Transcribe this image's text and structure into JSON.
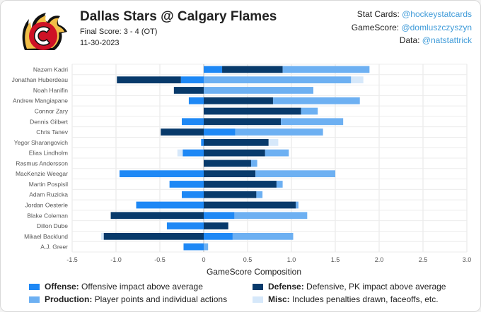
{
  "header": {
    "title": "Dallas Stars @ Calgary Flames",
    "score_line": "Final Score: 3 - 4 (OT)",
    "date": "11-30-2023"
  },
  "credits": [
    {
      "label": "Stat Cards: ",
      "handle": "@hockeystatcards"
    },
    {
      "label": "GameScore: ",
      "handle": "@domluszczyszyn"
    },
    {
      "label": "Data: ",
      "handle": "@natstattrick"
    }
  ],
  "logo": {
    "letter": "C",
    "colors": {
      "red": "#ce1126",
      "gold": "#f1be48",
      "black": "#111111"
    }
  },
  "colors": {
    "offense": "#1e88f5",
    "defense": "#083a6b",
    "production": "#6db0f2",
    "misc": "#d6e8fa"
  },
  "legend": [
    {
      "key": "offense",
      "name": "Offense:",
      "desc": " Offensive impact above average"
    },
    {
      "key": "defense",
      "name": "Defense:",
      "desc": " Defensive, PK impact above average"
    },
    {
      "key": "production",
      "name": "Production:",
      "desc": " Player points and individual actions"
    },
    {
      "key": "misc",
      "name": "Misc:",
      "desc": " Includes penalties drawn, faceoffs, etc."
    }
  ],
  "chart_data": {
    "type": "bar",
    "orientation": "horizontal",
    "stacked": true,
    "xlabel": "GameScore Composition",
    "xlim": [
      -1.5,
      3.0
    ],
    "xticks": [
      -1.5,
      -1.0,
      -0.5,
      0,
      0.5,
      1.0,
      1.5,
      2.0,
      2.5,
      3.0
    ],
    "xtick_labels": [
      "-1.5",
      "-1.0",
      "-0.5",
      "0",
      "0.5",
      "1.0",
      "1.5",
      "2.0",
      "2.5",
      "3.0"
    ],
    "grid": true,
    "categories": [
      "Nazem Kadri",
      "Jonathan Huberdeau",
      "Noah Hanifin",
      "Andrew Mangiapane",
      "Connor Zary",
      "Dennis Gilbert",
      "Chris Tanev",
      "Yegor Sharangovich",
      "Elias Lindholm",
      "Rasmus Andersson",
      "MacKenzie Weegar",
      "Martin Pospisil",
      "Adam Ruzicka",
      "Jordan Oesterle",
      "Blake Coleman",
      "Dillon Dube",
      "Mikael Backlund",
      "A.J. Greer"
    ],
    "series": [
      {
        "key": "offense",
        "name": "Offense",
        "values": [
          0.21,
          -0.26,
          0,
          -0.17,
          0,
          -0.25,
          0.36,
          -0.03,
          -0.24,
          0,
          -0.96,
          -0.39,
          -0.25,
          -0.77,
          0.35,
          -0.42,
          0.33,
          -0.23
        ]
      },
      {
        "key": "defense",
        "name": "Defense",
        "values": [
          0.69,
          -0.73,
          -0.34,
          0.79,
          1.11,
          0.88,
          -0.49,
          0.74,
          0.7,
          0.54,
          0.59,
          0.83,
          0.6,
          1.05,
          -1.06,
          0.28,
          -1.14,
          0
        ]
      },
      {
        "key": "production",
        "name": "Production",
        "values": [
          0.99,
          1.68,
          1.25,
          0.99,
          0.19,
          0.71,
          1.0,
          0,
          0.27,
          0.07,
          0.91,
          0.07,
          0.07,
          0.03,
          0.83,
          0,
          0.69,
          0.05
        ]
      },
      {
        "key": "misc",
        "name": "Misc",
        "values": [
          0,
          0.14,
          0,
          0,
          0,
          0,
          0,
          0.11,
          -0.06,
          0,
          0,
          0,
          0,
          0,
          0,
          0,
          -0.03,
          0
        ]
      }
    ]
  }
}
